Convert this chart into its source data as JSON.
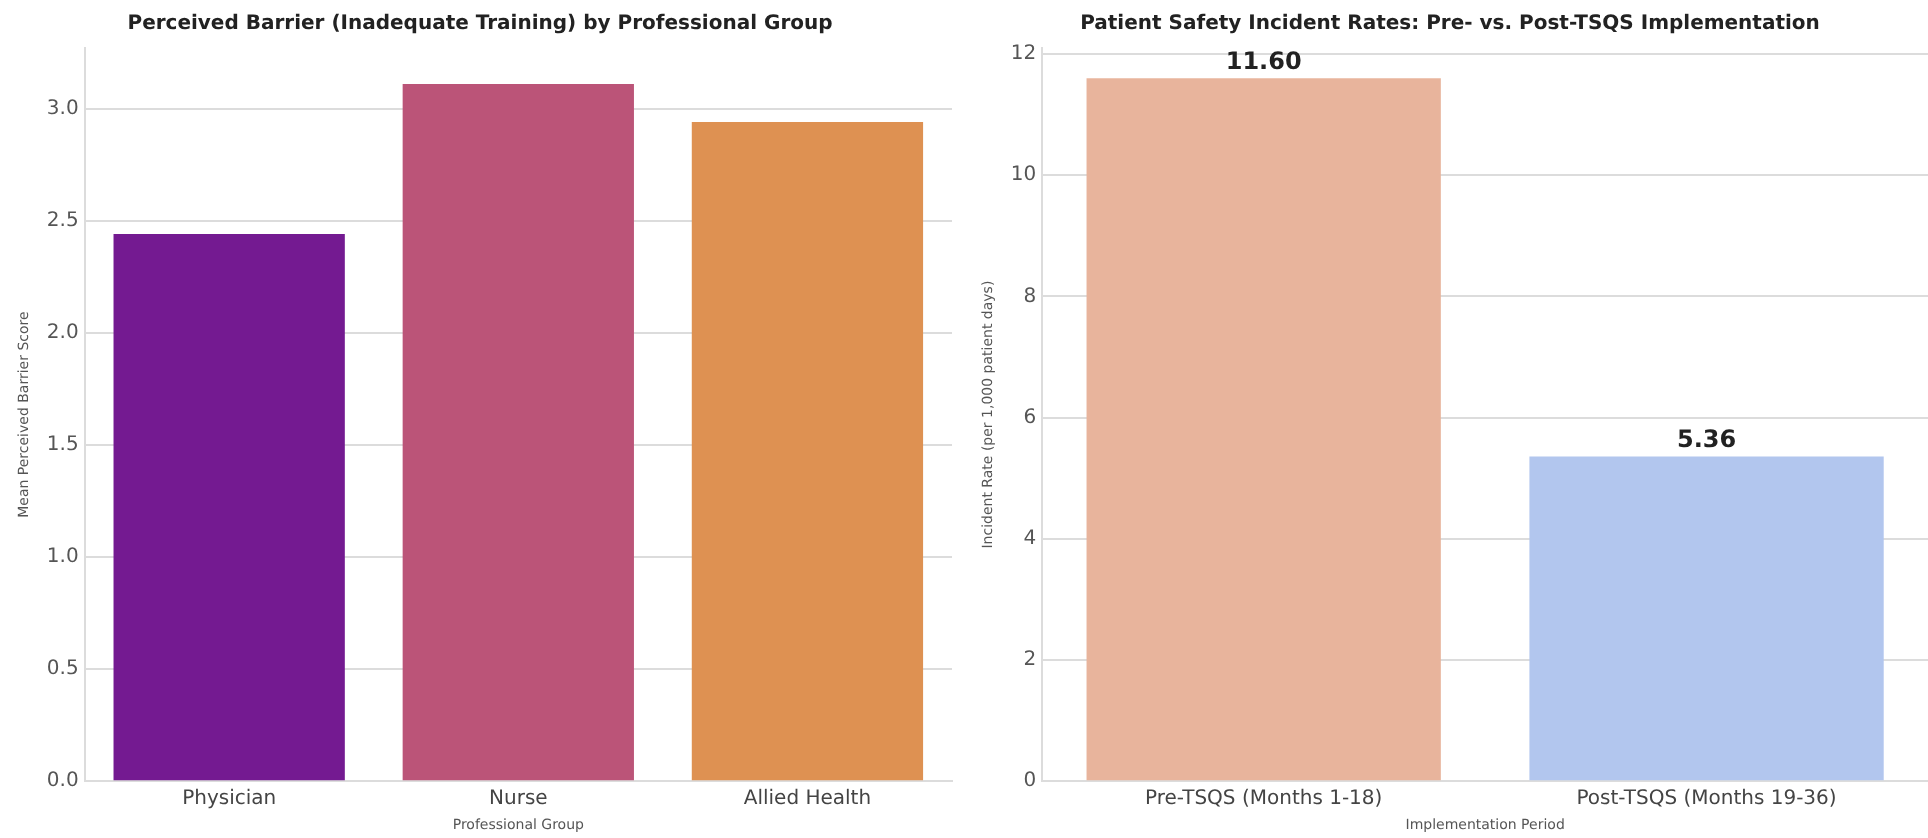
{
  "chart_data": [
    {
      "type": "bar",
      "title": "Perceived Barrier (Inadequate Training) by Professional Group",
      "xlabel": "Professional Group",
      "ylabel": "Mean Perceived Barrier Score",
      "categories": [
        "Physician",
        "Nurse",
        "Allied Health"
      ],
      "values": [
        2.44,
        3.11,
        2.94
      ],
      "colors": [
        "#741a91",
        "#bb5478",
        "#de9152"
      ],
      "ylim": [
        0,
        3.27
      ],
      "yticks": [
        {
          "value": 0,
          "label": "0.0"
        },
        {
          "value": 0.5,
          "label": "0.5"
        },
        {
          "value": 1,
          "label": "1.0"
        },
        {
          "value": 1.5,
          "label": "1.5"
        },
        {
          "value": 2,
          "label": "2.0"
        },
        {
          "value": 2.5,
          "label": "2.5"
        },
        {
          "value": 3,
          "label": "3.0"
        }
      ],
      "grid": "y"
    },
    {
      "type": "bar",
      "title": "Patient Safety Incident Rates: Pre- vs. Post-TSQS Implementation",
      "xlabel": "Implementation Period",
      "ylabel": "Incident Rate (per 1,000 patient days)",
      "categories": [
        "Pre-TSQS (Months 1-18)",
        "Post-TSQS (Months 19-36)"
      ],
      "values": [
        11.6,
        5.36
      ],
      "colors": [
        "#e8b49c",
        "#b2c6ee"
      ],
      "value_labels": [
        "11.60",
        "5.36"
      ],
      "ylim": [
        0,
        12.1
      ],
      "yticks": [
        0,
        2,
        4,
        6,
        8,
        10,
        12
      ],
      "grid": "y"
    }
  ]
}
